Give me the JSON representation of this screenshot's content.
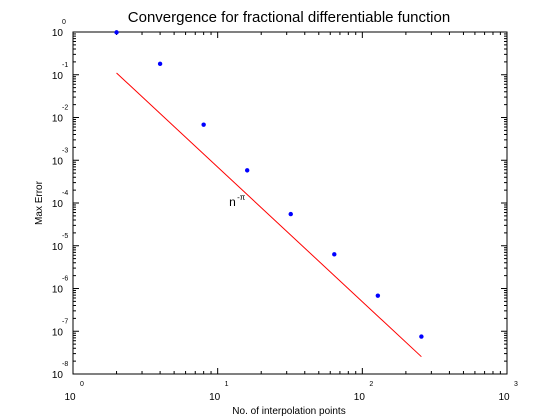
{
  "chart_data": {
    "type": "scatter",
    "title": "Convergence for fractional differentiable function",
    "xlabel": "No. of interpolation points",
    "ylabel": "Max Error",
    "xscale": "log",
    "yscale": "log",
    "xlim": [
      1,
      1000
    ],
    "ylim": [
      1e-08,
      1
    ],
    "grid": false,
    "x_ticks": [
      {
        "base": "10",
        "exp": "0"
      },
      {
        "base": "10",
        "exp": "1"
      },
      {
        "base": "10",
        "exp": "2"
      },
      {
        "base": "10",
        "exp": "3"
      }
    ],
    "y_ticks": [
      {
        "base": "10",
        "exp": "0"
      },
      {
        "base": "10",
        "exp": "-1"
      },
      {
        "base": "10",
        "exp": "-2"
      },
      {
        "base": "10",
        "exp": "-3"
      },
      {
        "base": "10",
        "exp": "-4"
      },
      {
        "base": "10",
        "exp": "-5"
      },
      {
        "base": "10",
        "exp": "-6"
      },
      {
        "base": "10",
        "exp": "-7"
      },
      {
        "base": "10",
        "exp": "-8"
      }
    ],
    "series": [
      {
        "marker": "dot",
        "color": "#0000ff",
        "x": [
          2,
          4,
          8,
          16,
          32,
          64,
          128,
          256
        ],
        "y": [
          0.98,
          0.18,
          0.0068,
          0.00058,
          5.5e-05,
          6.3e-06,
          6.8e-07,
          7.5e-08
        ]
      },
      {
        "line": true,
        "color": "#ff0000",
        "x": [
          2,
          256
        ],
        "y": [
          0.11,
          2.54e-08
        ]
      }
    ],
    "annotation": {
      "base": "n",
      "exp": "-π",
      "at": [
        12,
        8.5e-05
      ]
    }
  }
}
